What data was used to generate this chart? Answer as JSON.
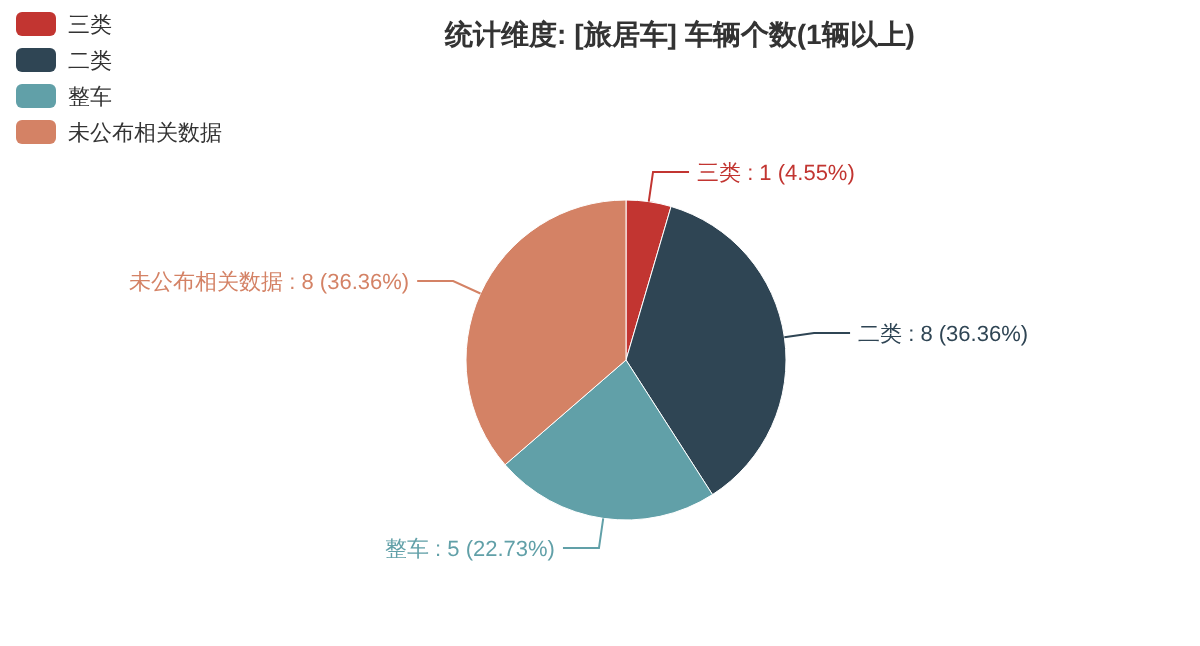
{
  "chart_data": {
    "type": "pie",
    "title": "统计维度: [旅居车] 车辆个数(1辆以上)",
    "categories": [
      "三类",
      "二类",
      "整车",
      "未公布相关数据"
    ],
    "values": [
      1,
      8,
      5,
      8
    ],
    "colors": [
      "#c23531",
      "#2f4554",
      "#61a0a8",
      "#d48265"
    ],
    "value_labels": [
      "三类 : 1 (4.55%)",
      "二类 : 8 (36.36%)",
      "整车 : 5 (22.73%)",
      "未公布相关数据 : 8 (36.36%)"
    ],
    "legend": "top left"
  }
}
